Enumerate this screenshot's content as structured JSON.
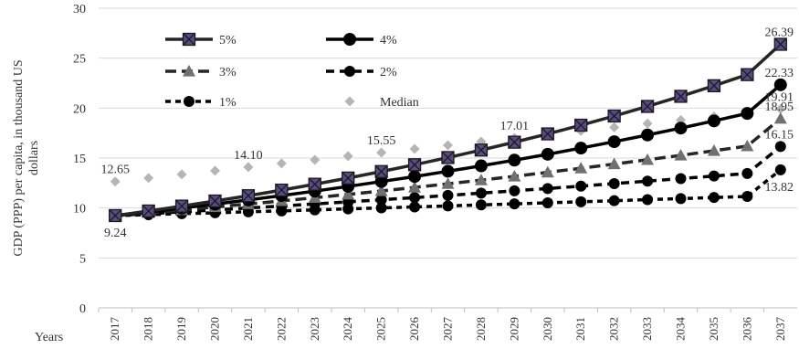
{
  "chart_data": {
    "type": "line",
    "title": "",
    "xlabel": "Years",
    "ylabel": "GDP (PPP) per capita, in thousand US dollars",
    "ylim": [
      0,
      30
    ],
    "yticks": [
      "0",
      "5",
      "10",
      "15",
      "20",
      "25",
      "30"
    ],
    "legend_position": "top-left (inside plot, two columns)",
    "categories": [
      "2017",
      "2018",
      "2019",
      "2020",
      "2021",
      "2022",
      "2023",
      "2024",
      "2025",
      "2026",
      "2027",
      "2028",
      "2029",
      "2030",
      "2031",
      "2032",
      "2033",
      "2034",
      "2035",
      "2036",
      "2037"
    ],
    "series": [
      {
        "name": "5%",
        "style": "solid-square",
        "color": "#262626",
        "marker_fill": "#5a4a85",
        "values": [
          9.24,
          9.7,
          10.19,
          10.7,
          11.23,
          11.79,
          12.38,
          13.0,
          13.65,
          14.33,
          15.05,
          15.8,
          16.59,
          17.42,
          18.29,
          19.21,
          20.17,
          21.18,
          22.24,
          23.35,
          26.39
        ]
      },
      {
        "name": "4%",
        "style": "solid-circle",
        "color": "#000000",
        "marker_fill": "#000000",
        "values": [
          9.24,
          9.61,
          9.99,
          10.39,
          10.81,
          11.24,
          11.69,
          12.16,
          12.65,
          13.15,
          13.68,
          14.22,
          14.79,
          15.38,
          16.0,
          16.64,
          17.31,
          18.0,
          18.72,
          19.47,
          22.33
        ]
      },
      {
        "name": "3%",
        "style": "dash-triangle",
        "color": "#262626",
        "marker_fill": "#707070",
        "values": [
          9.24,
          9.52,
          9.8,
          10.1,
          10.4,
          10.71,
          11.03,
          11.36,
          11.71,
          12.06,
          12.42,
          12.79,
          13.17,
          13.57,
          13.98,
          14.4,
          14.83,
          15.27,
          15.73,
          16.2,
          18.95
        ]
      },
      {
        "name": "2%",
        "style": "dash-circle",
        "color": "#000000",
        "marker_fill": "#000000",
        "values": [
          9.24,
          9.42,
          9.61,
          9.81,
          10.0,
          10.2,
          10.41,
          10.61,
          10.83,
          11.04,
          11.26,
          11.49,
          11.72,
          11.95,
          12.19,
          12.44,
          12.69,
          12.94,
          13.2,
          13.46,
          16.15
        ]
      },
      {
        "name": "1%",
        "style": "dash-circle-small",
        "color": "#000000",
        "marker_fill": "#000000",
        "values": [
          9.24,
          9.33,
          9.43,
          9.52,
          9.62,
          9.71,
          9.81,
          9.91,
          10.01,
          10.11,
          10.21,
          10.31,
          10.41,
          10.52,
          10.62,
          10.73,
          10.84,
          10.94,
          11.05,
          11.16,
          13.82
        ]
      },
      {
        "name": "Median",
        "style": "diamond-only",
        "color": "#b5b5b5",
        "marker_fill": "#b5b5b5",
        "values": [
          12.65,
          13.0,
          13.36,
          13.73,
          14.1,
          14.46,
          14.82,
          15.19,
          15.55,
          15.92,
          16.28,
          16.65,
          17.01,
          17.36,
          17.72,
          18.08,
          18.45,
          18.81,
          19.17,
          19.54,
          19.91
        ]
      }
    ],
    "data_labels": [
      {
        "text": "12.65",
        "series": "Median",
        "index": 0,
        "anchor": "above"
      },
      {
        "text": "14.10",
        "series": "Median",
        "index": 4,
        "anchor": "above"
      },
      {
        "text": "15.55",
        "series": "Median",
        "index": 8,
        "anchor": "above"
      },
      {
        "text": "17.01",
        "series": "Median",
        "index": 12,
        "anchor": "above"
      },
      {
        "text": "9.24",
        "series": "5%",
        "index": 0,
        "anchor": "below"
      },
      {
        "text": "26.39",
        "series": "5%",
        "index": 20,
        "anchor": "above"
      },
      {
        "text": "22.33",
        "series": "4%",
        "index": 20,
        "anchor": "above"
      },
      {
        "text": "19.91",
        "series": "Median",
        "index": 20,
        "anchor": "above"
      },
      {
        "text": "18.95",
        "series": "3%",
        "index": 20,
        "anchor": "above"
      },
      {
        "text": "16.15",
        "series": "2%",
        "index": 20,
        "anchor": "above"
      },
      {
        "text": "13.82",
        "series": "1%",
        "index": 20,
        "anchor": "below"
      }
    ]
  }
}
